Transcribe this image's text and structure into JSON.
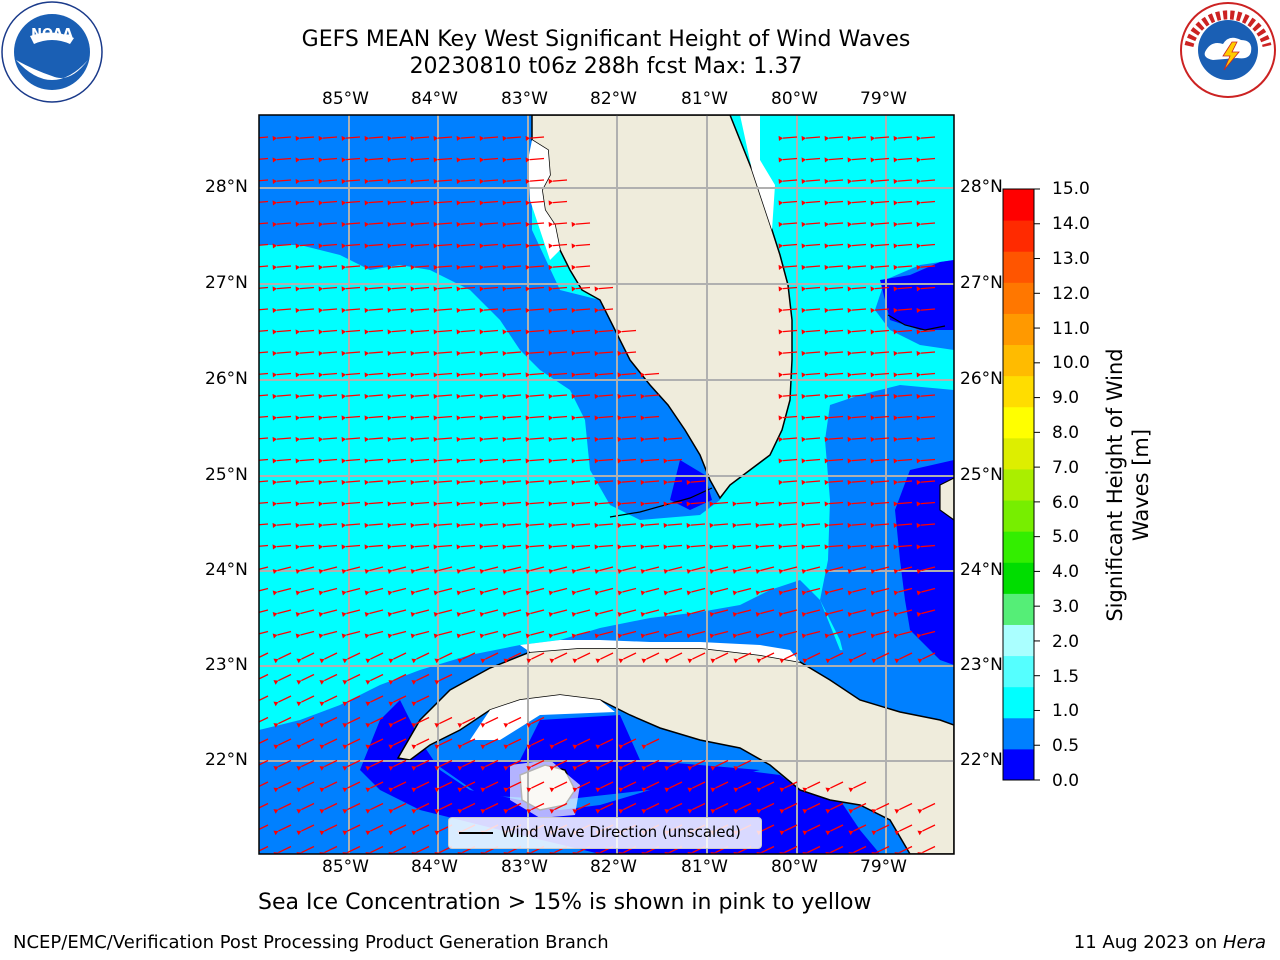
{
  "title_line1": "GEFS MEAN Key West Significant Height of Wind Waves",
  "title_line2": "20230810 t06z 288h fcst   Max: 1.37",
  "lon_ticks": [
    "85°W",
    "84°W",
    "83°W",
    "82°W",
    "81°W",
    "80°W",
    "79°W"
  ],
  "lat_ticks": [
    "28°N",
    "27°N",
    "26°N",
    "25°N",
    "24°N",
    "23°N",
    "22°N"
  ],
  "colorbar": {
    "title": "Significant Height of Wind Waves [m]",
    "ticks": [
      "15.0",
      "14.0",
      "13.0",
      "12.0",
      "11.0",
      "10.0",
      "9.0",
      "8.0",
      "7.0",
      "6.0",
      "5.0",
      "4.0",
      "3.0",
      "2.0",
      "1.5",
      "1.0",
      "0.5",
      "0.0"
    ],
    "colors": [
      "#0000ff",
      "#0080ff",
      "#00ffff",
      "#55ffff",
      "#aaffff",
      "#55ee77",
      "#00dd00",
      "#33ee00",
      "#77ee00",
      "#aaee00",
      "#ddee00",
      "#ffff00",
      "#ffdd00",
      "#ffbb00",
      "#ff9900",
      "#ff7700",
      "#ff5500",
      "#ff2a00",
      "#ff0000"
    ]
  },
  "legend": {
    "label": "Wind Wave Direction (unscaled)"
  },
  "footer_note": "Sea Ice Concentration > 15% is shown in pink to yellow",
  "credit_left": "NCEP/EMC/Verification Post Processing Product Generation Branch",
  "credit_right_date": "11 Aug 2023 on ",
  "credit_right_host": "Hera",
  "logos": {
    "left": "noaa-logo",
    "right": "national-weather-service-logo"
  },
  "map_colors": {
    "land": "#efecdc",
    "ocean_low": "#0000ff",
    "ocean_mid": "#0080ff",
    "ocean_high": "#00ffff",
    "arrows": "#ff0000",
    "grid": "#b0b0b0"
  }
}
